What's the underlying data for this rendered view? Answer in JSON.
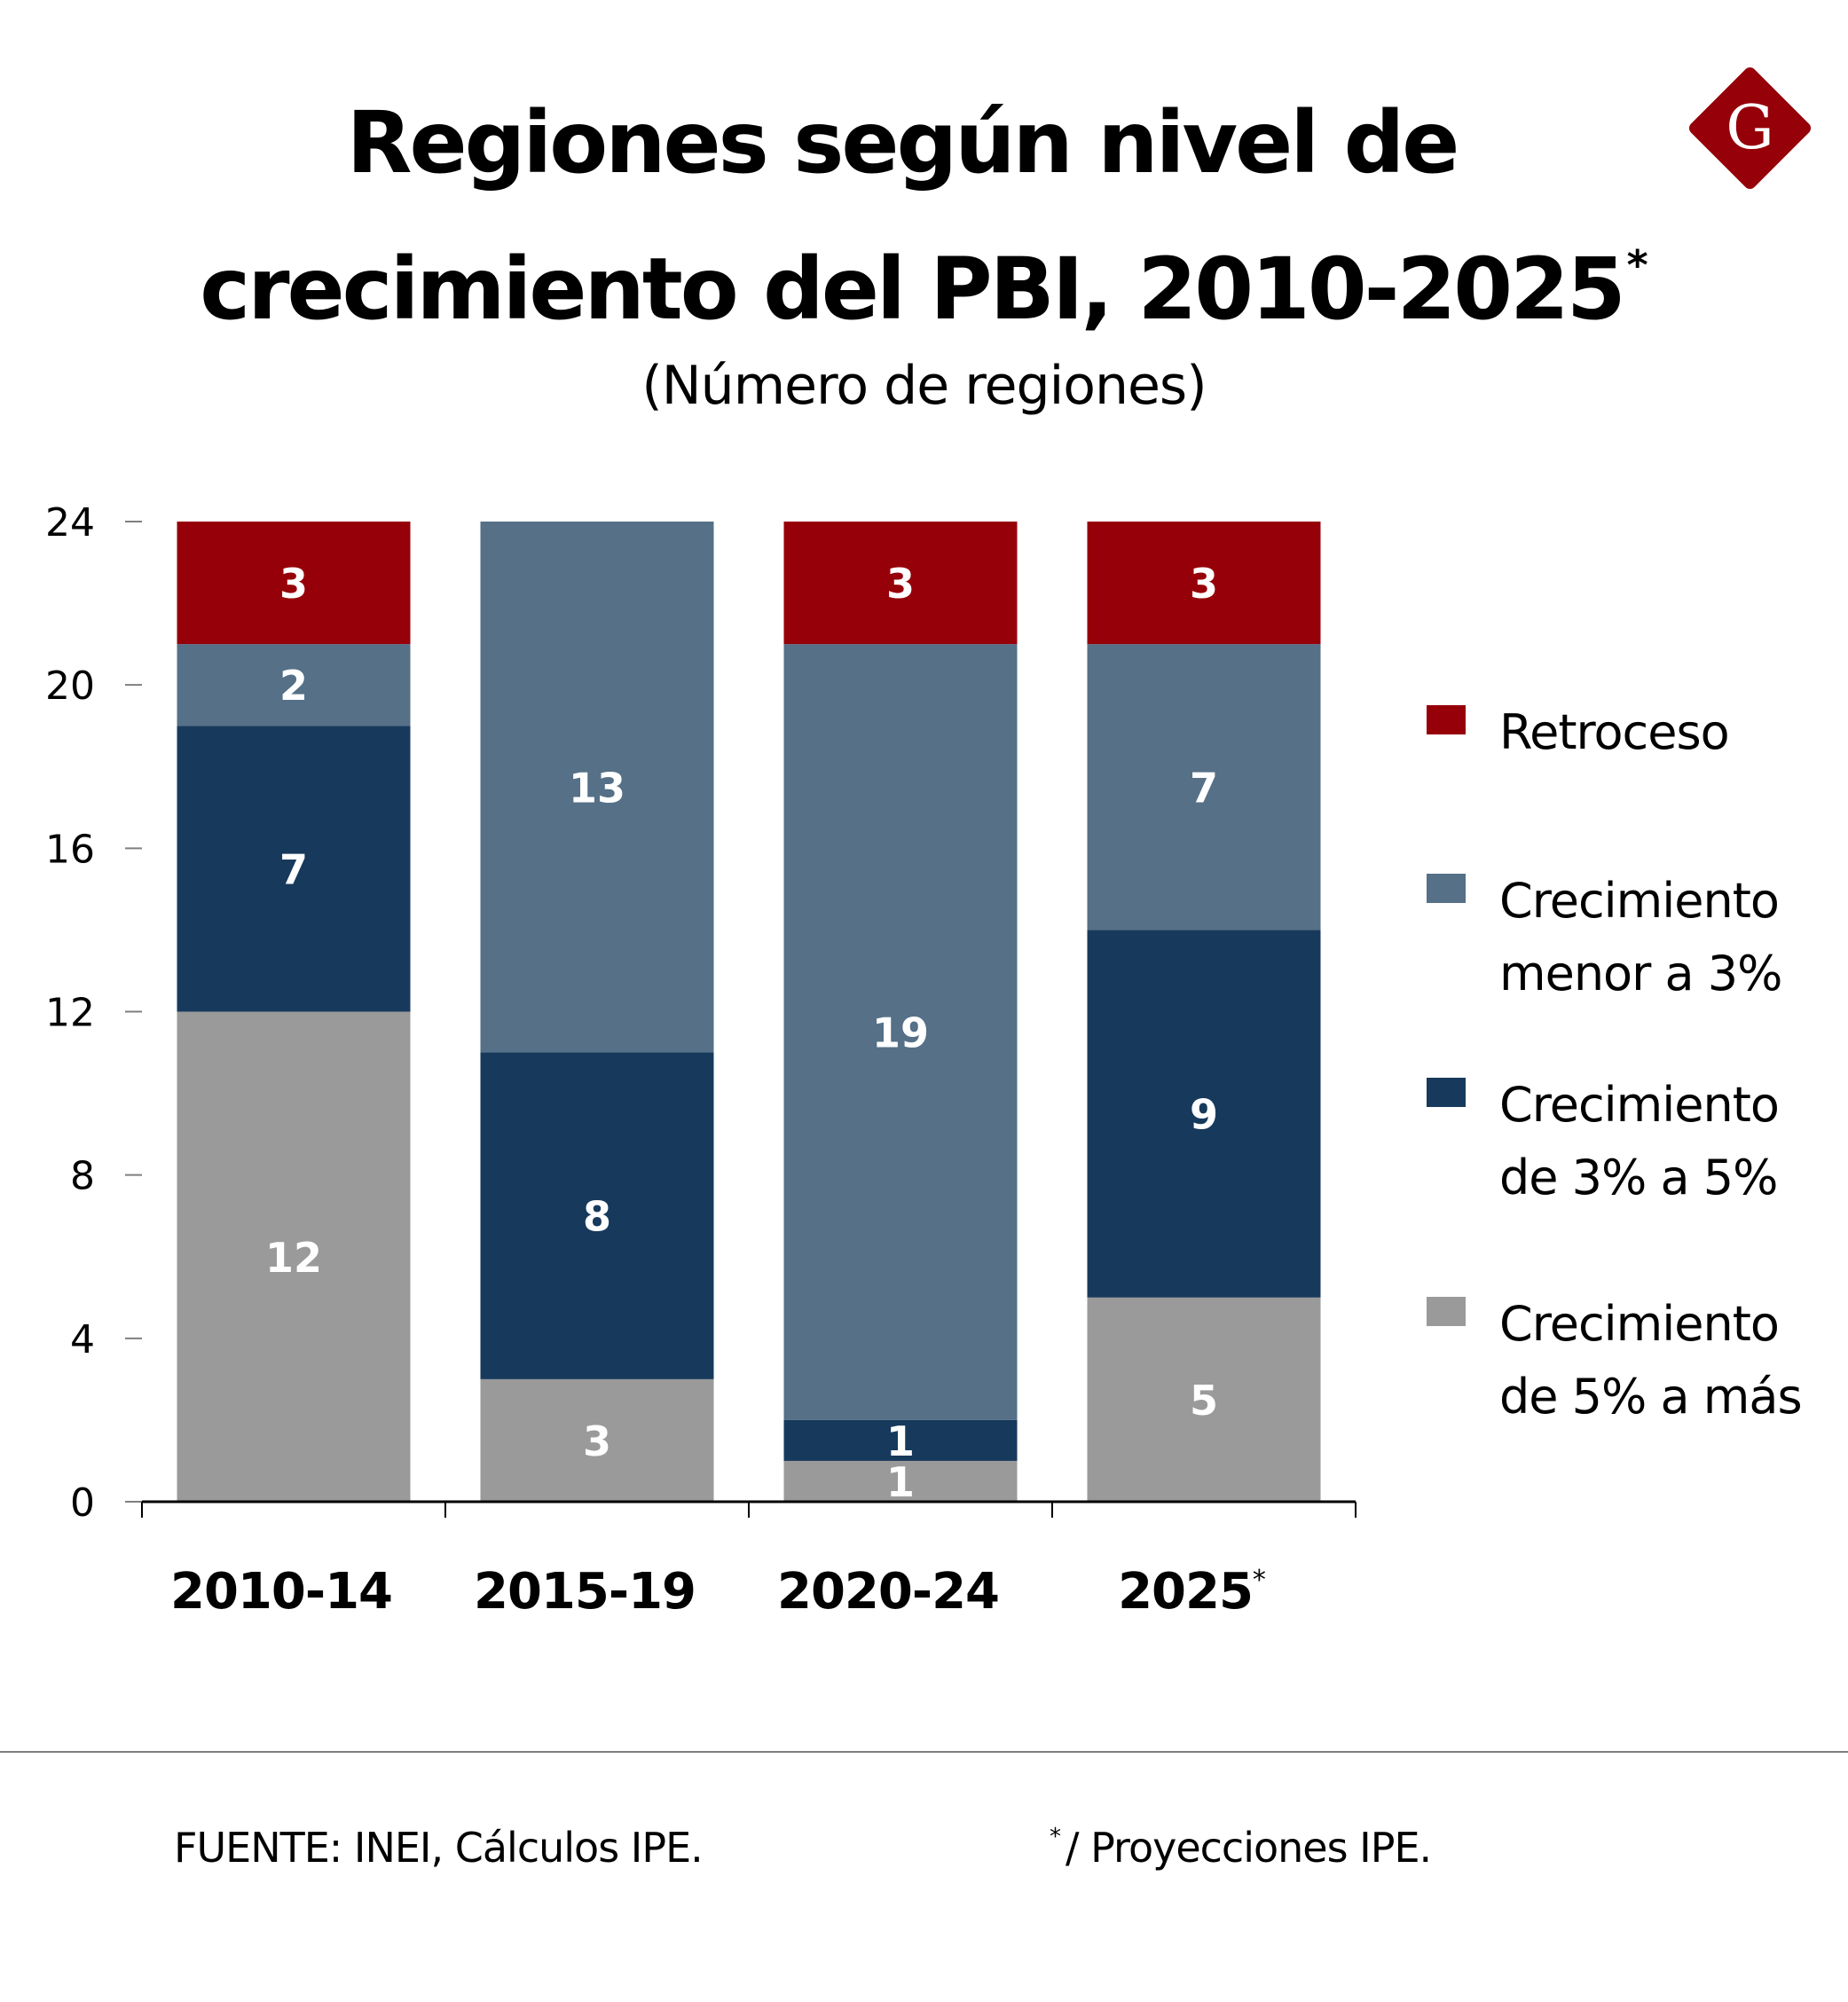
{
  "header": {
    "title_line1": "Regiones según nivel de",
    "title_line2": "crecimiento del PBI, 2010-2025",
    "title_mark": "*",
    "subtitle": "(Número de regiones)",
    "logo_letter": "G",
    "logo_color": "#960009"
  },
  "colors": {
    "retroceso": "#960009",
    "menor_3": "#557087",
    "de_3_a_5": "#173a5c",
    "de_5_a_mas": "#9a9a9a",
    "axis": "#000000",
    "tick": "#7f7f7f"
  },
  "legend": [
    {
      "key": "retroceso",
      "label": "Retroceso"
    },
    {
      "key": "menor_3",
      "label": "Crecimiento\nmenor a 3%"
    },
    {
      "key": "de_3_a_5",
      "label": "Crecimiento\nde 3% a 5%"
    },
    {
      "key": "de_5_a_mas",
      "label": "Crecimiento\nde 5% a más"
    }
  ],
  "chart_data": {
    "type": "bar",
    "stacked": true,
    "title": "Regiones según nivel de crecimiento del PBI, 2010-2025*",
    "subtitle": "(Número de regiones)",
    "xlabel": "",
    "ylabel": "",
    "categories": [
      "2010-14",
      "2015-19",
      "2020-24",
      "2025"
    ],
    "category_marks": [
      "",
      "",
      "",
      "*"
    ],
    "ylim": [
      0,
      24
    ],
    "yticks": [
      0,
      4,
      8,
      12,
      16,
      20,
      24
    ],
    "grid": false,
    "legend_position": "right",
    "series": [
      {
        "name": "Crecimiento de 5% a más",
        "key": "de_5_a_mas",
        "values": [
          12,
          3,
          1,
          5
        ]
      },
      {
        "name": "Crecimiento de 3% a 5%",
        "key": "de_3_a_5",
        "values": [
          7,
          8,
          1,
          9
        ]
      },
      {
        "name": "Crecimiento menor a 3%",
        "key": "menor_3",
        "values": [
          2,
          13,
          19,
          7
        ]
      },
      {
        "name": "Retroceso",
        "key": "retroceso",
        "values": [
          3,
          0,
          3,
          3
        ]
      }
    ],
    "data_labels": true
  },
  "footer": {
    "source": "FUENTE: INEI, Cálculos IPE.",
    "note_mark": "*",
    "note": "/ Proyecciones IPE."
  }
}
